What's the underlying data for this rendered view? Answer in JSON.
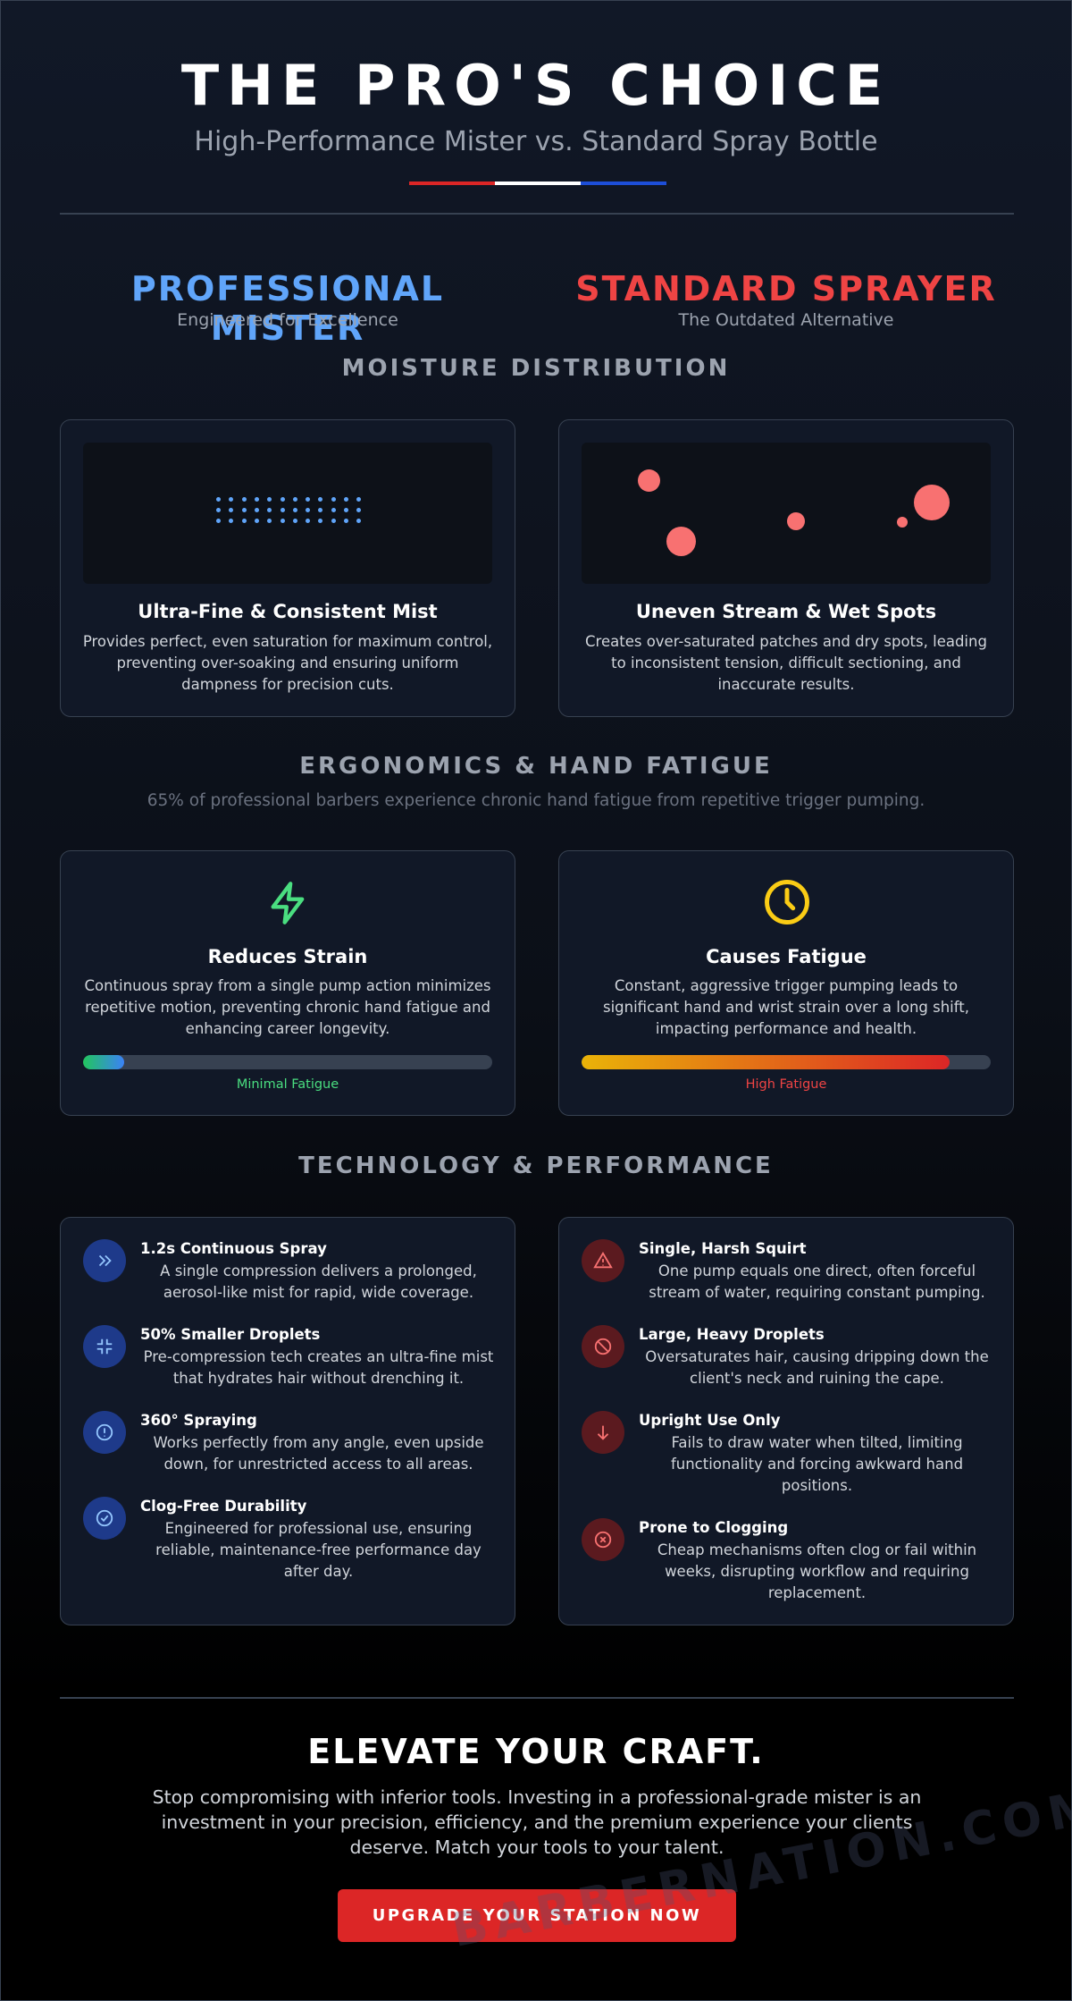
{
  "header": {
    "title": "THE PRO'S CHOICE",
    "subtitle": "High-Performance Mister vs. Standard Spray Bottle"
  },
  "columns": {
    "pro": {
      "title": "PROFESSIONAL MISTER",
      "subtitle": "Engineered for Excellence"
    },
    "standard": {
      "title": "STANDARD SPRAYER",
      "subtitle": "The Outdated Alternative"
    }
  },
  "moisture": {
    "title": "MOISTURE DISTRIBUTION",
    "cards": [
      {
        "title": "Ultra-Fine & Consistent Mist",
        "text": "Provides perfect, even saturation for maximum control, preventing over-soaking and ensuring uniform dampness for precision cuts."
      },
      {
        "title": "Uneven Stream & Wet Spots",
        "text": "Creates over-saturated patches and dry spots, leading to inconsistent tension, difficult sectioning, and inaccurate results."
      }
    ]
  },
  "ergonomics": {
    "title": "ERGONOMICS & HAND FATIGUE",
    "note": "65% of professional barbers experience chronic hand fatigue from repetitive trigger pumping.",
    "cards": [
      {
        "title": "Reduces Strain",
        "text": "Continuous spray from a single pump action minimizes repetitive motion, preventing chronic hand fatigue and enhancing career longevity.",
        "meter_label": "Minimal Fatigue"
      },
      {
        "title": "Causes Fatigue",
        "text": "Constant, aggressive trigger pumping leads to significant hand and wrist strain over a long shift, impacting performance and health.",
        "meter_label": "High Fatigue"
      }
    ]
  },
  "technology": {
    "title": "TECHNOLOGY & PERFORMANCE",
    "pro": [
      {
        "title": "1.2s Continuous Spray",
        "text": "A single compression delivers a prolonged, aerosol-like mist for rapid, wide coverage."
      },
      {
        "title": "50% Smaller Droplets",
        "text": "Pre-compression tech creates an ultra-fine mist that hydrates hair without drenching it."
      },
      {
        "title": "360° Spraying",
        "text": "Works perfectly from any angle, even upside down, for unrestricted access to all areas."
      },
      {
        "title": "Clog-Free Durability",
        "text": "Engineered for professional use, ensuring reliable, maintenance-free performance day after day."
      }
    ],
    "standard": [
      {
        "title": "Single, Harsh Squirt",
        "text": "One pump equals one direct, often forceful stream of water, requiring constant pumping."
      },
      {
        "title": "Large, Heavy Droplets",
        "text": "Oversaturates hair, causing dripping down the client's neck and ruining the cape."
      },
      {
        "title": "Upright Use Only",
        "text": "Fails to draw water when tilted, limiting functionality and forcing awkward hand positions."
      },
      {
        "title": "Prone to Clogging",
        "text": "Cheap mechanisms often clog or fail within weeks, disrupting workflow and requiring replacement."
      }
    ]
  },
  "cta": {
    "title": "ELEVATE YOUR CRAFT.",
    "text": "Stop compromising with inferior tools. Investing in a professional-grade mister is an investment in your precision, efficiency, and the premium experience your clients deserve. Match your tools to your talent.",
    "button": "UPGRADE YOUR STATION NOW"
  },
  "watermark": "BARBERNATION.COM"
}
